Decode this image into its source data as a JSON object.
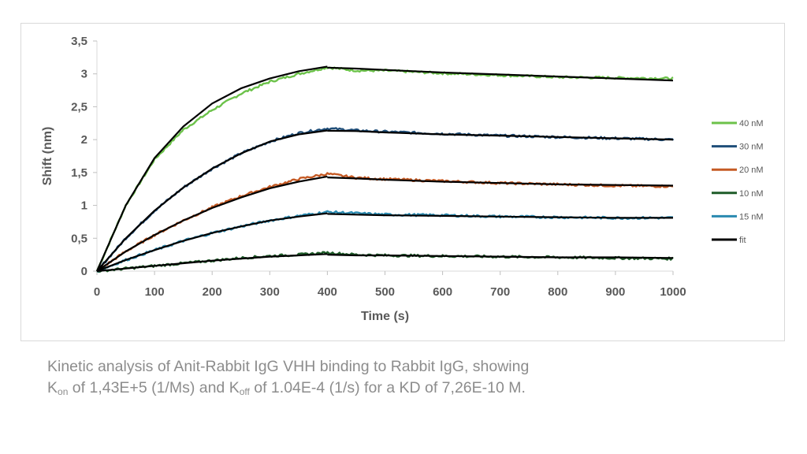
{
  "chart_data": {
    "type": "line",
    "xlabel": "Time (s)",
    "ylabel": "Shift (nm)",
    "xlim": [
      0,
      1000
    ],
    "ylim": [
      0,
      3.5
    ],
    "xticks": [
      0,
      100,
      200,
      300,
      400,
      500,
      600,
      700,
      800,
      900,
      1000
    ],
    "xtick_labels": [
      "0",
      "100",
      "200",
      "300",
      "400",
      "500",
      "600",
      "700",
      "800",
      "900",
      "1000"
    ],
    "yticks": [
      0,
      0.5,
      1,
      1.5,
      2,
      2.5,
      3,
      3.5
    ],
    "ytick_labels": [
      "0",
      "0,5",
      "1",
      "1,5",
      "2",
      "2,5",
      "3",
      "3,5"
    ],
    "grid": false,
    "legend_position": "right",
    "association_end": 400,
    "series": [
      {
        "name": "40 nM",
        "color": "#6cc24a",
        "x": [
          0,
          50,
          100,
          150,
          200,
          250,
          300,
          350,
          400,
          450,
          500,
          600,
          700,
          800,
          900,
          1000
        ],
        "y": [
          0,
          1.0,
          1.7,
          2.15,
          2.45,
          2.7,
          2.88,
          3.0,
          3.1,
          3.05,
          3.05,
          3.01,
          2.98,
          2.95,
          2.94,
          2.93
        ]
      },
      {
        "name": "30 nM",
        "color": "#1f4e79",
        "x": [
          0,
          50,
          100,
          150,
          200,
          250,
          300,
          350,
          400,
          450,
          500,
          600,
          700,
          800,
          900,
          1000
        ],
        "y": [
          0,
          0.5,
          0.92,
          1.27,
          1.56,
          1.79,
          1.97,
          2.1,
          2.17,
          2.14,
          2.12,
          2.09,
          2.06,
          2.04,
          2.02,
          2.0
        ]
      },
      {
        "name": "20 nM",
        "color": "#c55a24",
        "x": [
          0,
          50,
          100,
          150,
          200,
          250,
          300,
          350,
          400,
          450,
          500,
          600,
          700,
          800,
          900,
          1000
        ],
        "y": [
          0,
          0.3,
          0.55,
          0.77,
          0.97,
          1.14,
          1.28,
          1.4,
          1.48,
          1.42,
          1.4,
          1.37,
          1.34,
          1.32,
          1.3,
          1.29
        ]
      },
      {
        "name": "10 nM",
        "color": "#1e5c28",
        "x": [
          0,
          50,
          100,
          150,
          200,
          250,
          300,
          350,
          400,
          450,
          500,
          600,
          700,
          800,
          900,
          1000
        ],
        "y": [
          0,
          0.04,
          0.08,
          0.12,
          0.16,
          0.2,
          0.23,
          0.25,
          0.28,
          0.25,
          0.24,
          0.23,
          0.22,
          0.21,
          0.2,
          0.19
        ]
      },
      {
        "name": "15 nM",
        "color": "#2a8ab0",
        "x": [
          0,
          50,
          100,
          150,
          200,
          250,
          300,
          350,
          400,
          450,
          500,
          600,
          700,
          800,
          900,
          1000
        ],
        "y": [
          0,
          0.17,
          0.32,
          0.46,
          0.58,
          0.68,
          0.77,
          0.84,
          0.9,
          0.88,
          0.86,
          0.85,
          0.83,
          0.82,
          0.81,
          0.81
        ]
      },
      {
        "name": "fit",
        "color": "#000000",
        "curves": [
          {
            "x": [
              0,
              50,
              100,
              150,
              200,
              250,
              300,
              350,
              400,
              450,
              500,
              600,
              700,
              800,
              900,
              1000
            ],
            "y": [
              0,
              1.0,
              1.72,
              2.2,
              2.55,
              2.78,
              2.93,
              3.04,
              3.11,
              3.08,
              3.06,
              3.02,
              2.99,
              2.96,
              2.93,
              2.9
            ]
          },
          {
            "x": [
              0,
              50,
              100,
              150,
              200,
              250,
              300,
              350,
              400,
              450,
              500,
              600,
              700,
              800,
              900,
              1000
            ],
            "y": [
              0,
              0.5,
              0.92,
              1.27,
              1.56,
              1.79,
              1.97,
              2.08,
              2.14,
              2.13,
              2.11,
              2.08,
              2.06,
              2.04,
              2.02,
              2.0
            ]
          },
          {
            "x": [
              0,
              50,
              100,
              150,
              200,
              250,
              300,
              350,
              400,
              450,
              500,
              600,
              700,
              800,
              900,
              1000
            ],
            "y": [
              0,
              0.3,
              0.55,
              0.77,
              0.96,
              1.12,
              1.26,
              1.36,
              1.44,
              1.41,
              1.39,
              1.36,
              1.34,
              1.32,
              1.31,
              1.3
            ]
          },
          {
            "x": [
              0,
              50,
              100,
              150,
              200,
              250,
              300,
              350,
              400,
              450,
              500,
              600,
              700,
              800,
              900,
              1000
            ],
            "y": [
              0,
              0.04,
              0.08,
              0.12,
              0.16,
              0.19,
              0.22,
              0.24,
              0.26,
              0.24,
              0.24,
              0.23,
              0.22,
              0.21,
              0.21,
              0.2
            ]
          },
          {
            "x": [
              0,
              50,
              100,
              150,
              200,
              250,
              300,
              350,
              400,
              450,
              500,
              600,
              700,
              800,
              900,
              1000
            ],
            "y": [
              0,
              0.17,
              0.32,
              0.46,
              0.58,
              0.68,
              0.77,
              0.83,
              0.88,
              0.86,
              0.85,
              0.84,
              0.83,
              0.82,
              0.81,
              0.81
            ]
          }
        ]
      }
    ]
  },
  "caption": {
    "line1": "Kinetic analysis of Anit-Rabbit IgG VHH binding to Rabbit IgG, showing",
    "k_letter": "K",
    "on_sub": "on",
    "kon_text": " of 1,43E+5  (1/Ms) and K",
    "off_sub": "off",
    "rest_text": " of 1.04E-4 (1/s) for a KD of 7,26E-10  M."
  }
}
